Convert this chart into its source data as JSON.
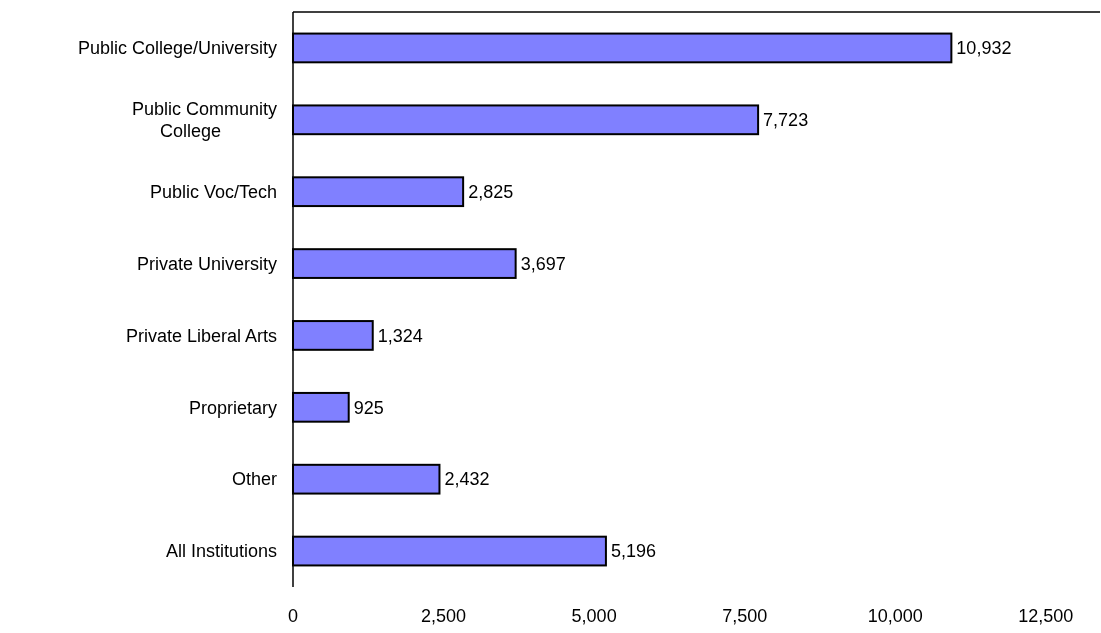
{
  "chart_data": {
    "type": "bar",
    "orientation": "horizontal",
    "categories": [
      "Public College/University",
      "Public Community College",
      "Public Voc/Tech",
      "Private University",
      "Private Liberal Arts",
      "Proprietary",
      "Other",
      "All Institutions"
    ],
    "values": [
      10932,
      7723,
      2825,
      3697,
      1324,
      925,
      2432,
      5196
    ],
    "color": "#8080ff",
    "xlim": [
      0,
      13400
    ],
    "xticks": [
      0,
      {
        "value": 2500,
        "label": "2,500"
      },
      {
        "value": 5000,
        "label": "5,000"
      },
      {
        "value": 7500,
        "label": "7,500"
      },
      {
        "value": 10000,
        "label": "10,000"
      },
      {
        "value": 12500,
        "label": "12,500"
      }
    ],
    "value_labels": [
      "10,932",
      "7,723",
      "2,825",
      "3,697",
      "1,324",
      "925",
      "2,432",
      "5,196"
    ],
    "data_labels": true,
    "grid": false,
    "legend": false
  }
}
